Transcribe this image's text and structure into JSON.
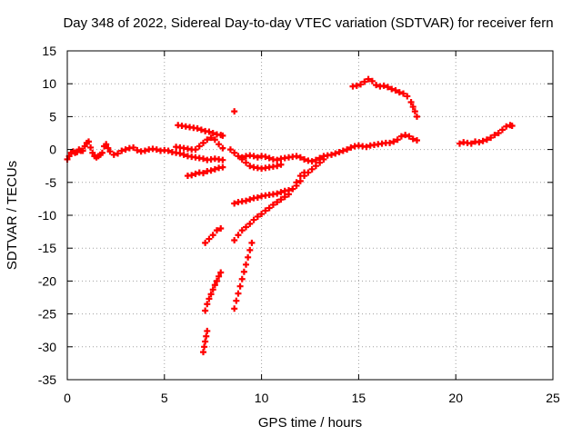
{
  "chart_data": {
    "type": "scatter",
    "title": "Day 348 of 2022, Sidereal Day-to-day VTEC variation (SDTVAR) for receiver fern",
    "xlabel": "GPS time / hours",
    "ylabel": "SDTVAR / TECUs",
    "xlim": [
      0,
      25
    ],
    "ylim": [
      -35,
      15
    ],
    "xticks": [
      0,
      5,
      10,
      15,
      20,
      25
    ],
    "yticks": [
      15,
      10,
      5,
      0,
      -5,
      -10,
      -15,
      -20,
      -25,
      -30,
      -35
    ],
    "grid": true,
    "legend": "none",
    "marker": "+",
    "color": "#ff0000",
    "series": [
      {
        "points": [
          [
            0,
            -1.5
          ],
          [
            0.1,
            -1.0
          ],
          [
            0.2,
            -0.5
          ],
          [
            0.3,
            -0.3
          ],
          [
            0.4,
            -0.5
          ],
          [
            0.5,
            -0.4
          ],
          [
            0.6,
            0.0
          ],
          [
            0.7,
            -0.2
          ],
          [
            0.8,
            -0.2
          ],
          [
            0.9,
            0.5
          ],
          [
            1.0,
            1.0
          ],
          [
            1.1,
            1.2
          ],
          [
            1.2,
            0.3
          ],
          [
            1.3,
            -0.5
          ],
          [
            1.4,
            -1.0
          ],
          [
            1.5,
            -1.2
          ],
          [
            1.6,
            -1.0
          ],
          [
            1.7,
            -0.8
          ],
          [
            1.8,
            -0.5
          ],
          [
            1.9,
            0.5
          ],
          [
            2.0,
            0.8
          ],
          [
            2.1,
            0.2
          ],
          [
            2.2,
            -0.3
          ],
          [
            2.4,
            -0.8
          ],
          [
            2.6,
            -0.6
          ],
          [
            2.8,
            -0.2
          ],
          [
            3.0,
            0.0
          ],
          [
            3.2,
            0.2
          ],
          [
            3.4,
            0.3
          ],
          [
            3.6,
            -0.1
          ],
          [
            3.8,
            -0.3
          ],
          [
            4.0,
            -0.2
          ],
          [
            4.2,
            0.0
          ],
          [
            4.4,
            0.1
          ],
          [
            4.6,
            0.0
          ],
          [
            4.8,
            -0.2
          ],
          [
            5.0,
            -0.1
          ],
          [
            5.2,
            -0.2
          ],
          [
            5.4,
            -0.4
          ],
          [
            5.6,
            -0.5
          ],
          [
            5.8,
            -0.6
          ],
          [
            6.0,
            -0.8
          ],
          [
            6.2,
            -1.0
          ],
          [
            6.4,
            -1.1
          ],
          [
            6.6,
            -1.2
          ],
          [
            6.8,
            -1.3
          ],
          [
            7.0,
            -1.4
          ],
          [
            7.2,
            -1.6
          ],
          [
            7.4,
            -1.5
          ],
          [
            7.6,
            -1.4
          ],
          [
            7.8,
            -1.5
          ],
          [
            8.0,
            -1.6
          ]
        ]
      },
      {
        "points": [
          [
            5.6,
            0.4
          ],
          [
            5.8,
            0.3
          ],
          [
            6.0,
            0.2
          ],
          [
            6.2,
            0.1
          ],
          [
            6.4,
            0.0
          ],
          [
            6.6,
            0.0
          ],
          [
            6.8,
            0.5
          ],
          [
            7.0,
            1.0
          ],
          [
            7.2,
            1.5
          ],
          [
            7.4,
            1.8
          ],
          [
            7.6,
            1.5
          ],
          [
            7.8,
            0.8
          ],
          [
            8.0,
            0.2
          ]
        ]
      },
      {
        "points": [
          [
            5.7,
            3.7
          ],
          [
            5.9,
            3.6
          ],
          [
            6.1,
            3.5
          ],
          [
            6.3,
            3.4
          ],
          [
            6.5,
            3.3
          ],
          [
            6.7,
            3.2
          ],
          [
            6.9,
            3.0
          ],
          [
            7.1,
            2.8
          ],
          [
            7.3,
            2.7
          ],
          [
            7.5,
            2.5
          ],
          [
            7.7,
            2.3
          ],
          [
            7.9,
            2.2
          ],
          [
            8.0,
            2.1
          ]
        ]
      },
      {
        "points": [
          [
            6.2,
            -4.0
          ],
          [
            6.4,
            -3.9
          ],
          [
            6.6,
            -3.7
          ],
          [
            6.8,
            -3.5
          ],
          [
            7.0,
            -3.6
          ],
          [
            7.2,
            -3.3
          ],
          [
            7.4,
            -3.2
          ],
          [
            7.6,
            -3.0
          ],
          [
            7.8,
            -2.8
          ],
          [
            8.0,
            -2.7
          ]
        ]
      },
      {
        "points": [
          [
            8.6,
            5.8
          ]
        ]
      },
      {
        "points": [
          [
            8.4,
            0.0
          ],
          [
            8.6,
            -0.5
          ],
          [
            8.8,
            -1.0
          ],
          [
            9.0,
            -1.5
          ],
          [
            9.2,
            -2.0
          ],
          [
            9.4,
            -2.5
          ],
          [
            9.6,
            -2.7
          ],
          [
            9.8,
            -2.8
          ],
          [
            10.0,
            -2.9
          ],
          [
            10.2,
            -2.8
          ],
          [
            10.4,
            -2.7
          ],
          [
            10.6,
            -2.6
          ],
          [
            10.8,
            -2.5
          ],
          [
            11.0,
            -2.3
          ]
        ]
      },
      {
        "points": [
          [
            9.0,
            -1.2
          ],
          [
            9.2,
            -1.0
          ],
          [
            9.4,
            -0.9
          ],
          [
            9.6,
            -1.0
          ],
          [
            9.8,
            -1.2
          ],
          [
            10.0,
            -1.0
          ],
          [
            10.2,
            -1.1
          ],
          [
            10.4,
            -1.3
          ],
          [
            10.6,
            -1.5
          ],
          [
            10.8,
            -1.6
          ],
          [
            11.0,
            -1.4
          ],
          [
            11.2,
            -1.3
          ],
          [
            11.4,
            -1.2
          ],
          [
            11.6,
            -1.1
          ],
          [
            11.8,
            -1.0
          ],
          [
            12.0,
            -1.2
          ],
          [
            12.2,
            -1.5
          ],
          [
            12.4,
            -1.7
          ],
          [
            12.6,
            -1.8
          ],
          [
            12.8,
            -1.6
          ],
          [
            13.0,
            -1.3
          ],
          [
            13.2,
            -1.0
          ],
          [
            13.4,
            -0.9
          ],
          [
            13.6,
            -0.8
          ],
          [
            13.8,
            -0.6
          ],
          [
            14.0,
            -0.4
          ],
          [
            14.2,
            -0.2
          ],
          [
            14.4,
            0.0
          ],
          [
            14.6,
            0.3
          ],
          [
            14.8,
            0.5
          ],
          [
            15.0,
            0.6
          ],
          [
            15.2,
            0.5
          ],
          [
            15.4,
            0.4
          ],
          [
            15.6,
            0.6
          ],
          [
            15.8,
            0.7
          ],
          [
            16.0,
            0.8
          ],
          [
            16.2,
            0.9
          ],
          [
            16.4,
            1.0
          ],
          [
            16.6,
            1.0
          ],
          [
            16.8,
            1.2
          ],
          [
            17.0,
            1.5
          ],
          [
            17.2,
            2.0
          ],
          [
            17.4,
            2.2
          ],
          [
            17.6,
            2.0
          ],
          [
            17.8,
            1.6
          ],
          [
            18.0,
            1.4
          ]
        ]
      },
      {
        "points": [
          [
            8.6,
            -8.2
          ],
          [
            8.8,
            -8.0
          ],
          [
            9.0,
            -7.9
          ],
          [
            9.2,
            -7.8
          ],
          [
            9.4,
            -7.6
          ],
          [
            9.6,
            -7.4
          ],
          [
            9.8,
            -7.3
          ],
          [
            10.0,
            -7.1
          ],
          [
            10.2,
            -7.0
          ],
          [
            10.4,
            -6.9
          ],
          [
            10.6,
            -6.8
          ],
          [
            10.8,
            -6.7
          ],
          [
            11.0,
            -6.5
          ],
          [
            11.2,
            -6.3
          ],
          [
            11.4,
            -6.2
          ],
          [
            11.6,
            -6.0
          ],
          [
            11.8,
            -5.5
          ],
          [
            12.0,
            -4.8
          ],
          [
            12.2,
            -4.0
          ],
          [
            12.4,
            -3.5
          ],
          [
            12.6,
            -3.0
          ],
          [
            12.8,
            -2.5
          ],
          [
            13.0,
            -2.0
          ],
          [
            13.2,
            -1.5
          ]
        ]
      },
      {
        "points": [
          [
            8.6,
            -13.8
          ],
          [
            8.8,
            -13.0
          ],
          [
            9.0,
            -12.3
          ],
          [
            9.2,
            -11.8
          ],
          [
            9.4,
            -11.3
          ],
          [
            9.6,
            -10.7
          ],
          [
            9.8,
            -10.2
          ],
          [
            10.0,
            -9.8
          ],
          [
            10.2,
            -9.3
          ],
          [
            10.4,
            -8.9
          ],
          [
            10.6,
            -8.4
          ],
          [
            10.8,
            -8.0
          ],
          [
            11.0,
            -7.6
          ],
          [
            11.2,
            -7.2
          ],
          [
            11.4,
            -6.8
          ],
          [
            11.6,
            -6.0
          ],
          [
            11.8,
            -5.0
          ],
          [
            12.0,
            -4.0
          ],
          [
            12.2,
            -3.5
          ]
        ]
      },
      {
        "points": [
          [
            7.1,
            -14.2
          ],
          [
            7.3,
            -13.6
          ],
          [
            7.5,
            -13.0
          ],
          [
            7.7,
            -12.3
          ],
          [
            7.9,
            -12.0
          ]
        ]
      },
      {
        "points": [
          [
            7.1,
            -24.5
          ],
          [
            7.2,
            -23.5
          ],
          [
            7.3,
            -22.7
          ],
          [
            7.4,
            -22.0
          ],
          [
            7.5,
            -21.3
          ],
          [
            7.6,
            -20.6
          ],
          [
            7.7,
            -20.0
          ],
          [
            7.8,
            -19.3
          ],
          [
            7.9,
            -18.7
          ]
        ]
      },
      {
        "points": [
          [
            7.0,
            -30.8
          ],
          [
            7.05,
            -30.0
          ],
          [
            7.1,
            -29.2
          ],
          [
            7.15,
            -28.4
          ],
          [
            7.2,
            -27.6
          ]
        ]
      },
      {
        "points": [
          [
            8.6,
            -24.2
          ],
          [
            8.7,
            -23.0
          ],
          [
            8.8,
            -21.9
          ],
          [
            8.9,
            -20.8
          ],
          [
            9.0,
            -19.7
          ],
          [
            9.1,
            -18.6
          ],
          [
            9.2,
            -17.5
          ],
          [
            9.3,
            -16.4
          ],
          [
            9.4,
            -15.3
          ],
          [
            9.5,
            -14.2
          ]
        ]
      },
      {
        "points": [
          [
            14.7,
            9.6
          ],
          [
            14.9,
            9.7
          ],
          [
            15.1,
            9.9
          ],
          [
            15.3,
            10.3
          ],
          [
            15.5,
            10.7
          ],
          [
            15.7,
            10.4
          ],
          [
            15.9,
            9.8
          ],
          [
            16.1,
            9.6
          ],
          [
            16.3,
            9.7
          ],
          [
            16.5,
            9.5
          ],
          [
            16.7,
            9.2
          ],
          [
            16.9,
            9.0
          ],
          [
            17.1,
            8.7
          ],
          [
            17.3,
            8.5
          ],
          [
            17.5,
            8.1
          ],
          [
            17.7,
            7.2
          ],
          [
            17.8,
            6.5
          ],
          [
            17.9,
            5.8
          ],
          [
            18.0,
            5.0
          ]
        ]
      },
      {
        "points": [
          [
            20.2,
            0.9
          ],
          [
            20.4,
            1.1
          ],
          [
            20.6,
            1.0
          ],
          [
            20.8,
            0.9
          ],
          [
            21.0,
            1.2
          ],
          [
            21.2,
            1.1
          ],
          [
            21.4,
            1.3
          ],
          [
            21.6,
            1.5
          ],
          [
            21.8,
            1.8
          ],
          [
            22.0,
            2.2
          ],
          [
            22.2,
            2.5
          ],
          [
            22.4,
            3.0
          ],
          [
            22.6,
            3.5
          ],
          [
            22.8,
            3.7
          ],
          [
            22.9,
            3.6
          ]
        ]
      }
    ]
  }
}
